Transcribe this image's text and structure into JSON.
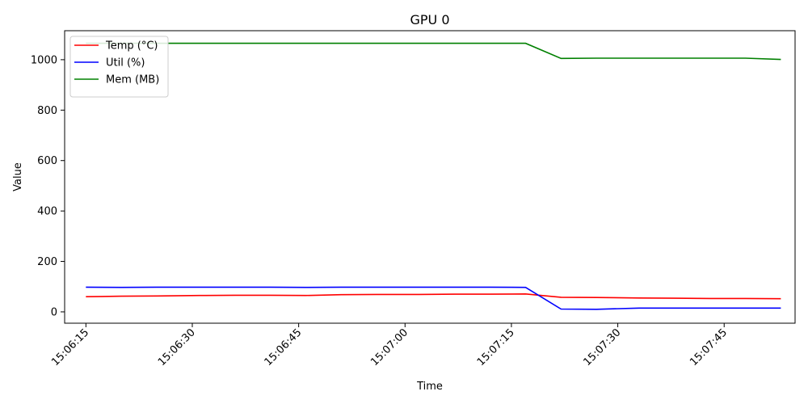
{
  "chart_data": {
    "type": "line",
    "title": "GPU 0",
    "xlabel": "Time",
    "ylabel": "Value",
    "xlim": [
      "15:06:12",
      "15:07:55"
    ],
    "ylim": [
      -45,
      1115
    ],
    "x_ticks": [
      "15:06:15",
      "15:06:30",
      "15:06:45",
      "15:07:00",
      "15:07:15",
      "15:07:30",
      "15:07:45"
    ],
    "y_ticks": [
      0,
      200,
      400,
      600,
      800,
      1000
    ],
    "grid": false,
    "legend_position": "top-left",
    "series": [
      {
        "name": "Temp (°C)",
        "color": "#ff0000",
        "points": [
          [
            "15:06:15",
            60
          ],
          [
            "15:06:20",
            62
          ],
          [
            "15:06:25",
            63
          ],
          [
            "15:06:31",
            65
          ],
          [
            "15:06:36",
            66
          ],
          [
            "15:06:41",
            66
          ],
          [
            "15:06:46",
            65
          ],
          [
            "15:06:51",
            68
          ],
          [
            "15:06:56",
            69
          ],
          [
            "15:07:02",
            69
          ],
          [
            "15:07:07",
            70
          ],
          [
            "15:07:12",
            70
          ],
          [
            "15:07:17",
            71
          ],
          [
            "15:07:22",
            58
          ],
          [
            "15:07:27",
            57
          ],
          [
            "15:07:33",
            55
          ],
          [
            "15:07:38",
            54
          ],
          [
            "15:07:43",
            53
          ],
          [
            "15:07:48",
            53
          ],
          [
            "15:07:53",
            52
          ]
        ]
      },
      {
        "name": "Util (%)",
        "color": "#0000ff",
        "points": [
          [
            "15:06:15",
            98
          ],
          [
            "15:06:20",
            97
          ],
          [
            "15:06:25",
            98
          ],
          [
            "15:06:31",
            98
          ],
          [
            "15:06:36",
            98
          ],
          [
            "15:06:41",
            98
          ],
          [
            "15:06:46",
            97
          ],
          [
            "15:06:51",
            98
          ],
          [
            "15:06:56",
            98
          ],
          [
            "15:07:02",
            98
          ],
          [
            "15:07:07",
            98
          ],
          [
            "15:07:12",
            98
          ],
          [
            "15:07:17",
            97
          ],
          [
            "15:07:22",
            11
          ],
          [
            "15:07:27",
            10
          ],
          [
            "15:07:33",
            15
          ],
          [
            "15:07:38",
            15
          ],
          [
            "15:07:43",
            15
          ],
          [
            "15:07:48",
            15
          ],
          [
            "15:07:53",
            15
          ]
        ]
      },
      {
        "name": "Mem (MB)",
        "color": "#008000",
        "points": [
          [
            "15:06:15",
            1065
          ],
          [
            "15:06:20",
            1065
          ],
          [
            "15:06:25",
            1065
          ],
          [
            "15:06:31",
            1065
          ],
          [
            "15:06:36",
            1065
          ],
          [
            "15:06:41",
            1065
          ],
          [
            "15:06:46",
            1065
          ],
          [
            "15:06:51",
            1065
          ],
          [
            "15:06:56",
            1065
          ],
          [
            "15:07:02",
            1065
          ],
          [
            "15:07:07",
            1065
          ],
          [
            "15:07:12",
            1065
          ],
          [
            "15:07:17",
            1065
          ],
          [
            "15:07:22",
            1005
          ],
          [
            "15:07:27",
            1006
          ],
          [
            "15:07:33",
            1006
          ],
          [
            "15:07:38",
            1006
          ],
          [
            "15:07:43",
            1006
          ],
          [
            "15:07:48",
            1006
          ],
          [
            "15:07:53",
            1001
          ]
        ]
      }
    ]
  }
}
